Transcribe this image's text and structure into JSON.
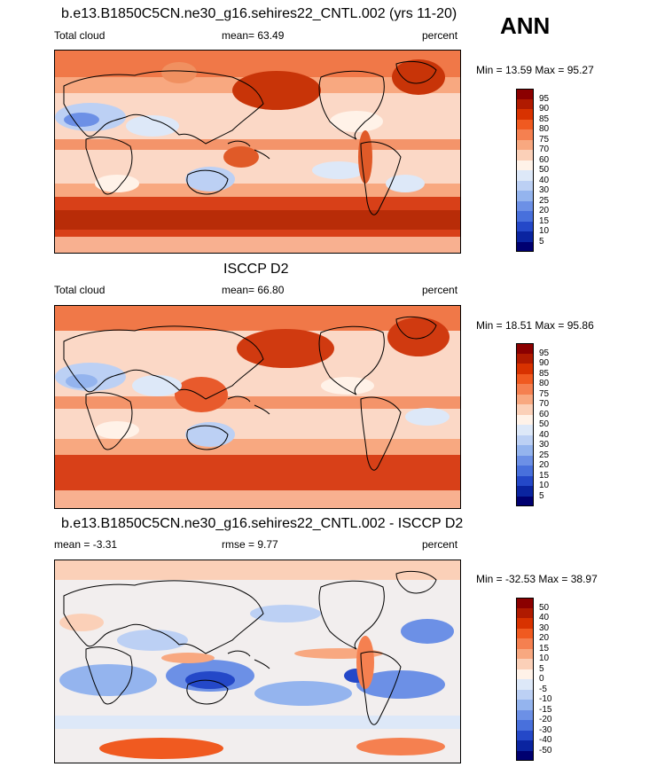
{
  "season": "ANN",
  "panels": [
    {
      "title": "b.e13.B1850C5CN.ne30_g16.sehires22_CNTL.002 (yrs 11-20)",
      "left_label": "Total cloud",
      "center_label": "mean=  63.49",
      "units": "percent",
      "minmax": "Min =  13.59 Max =  95.27",
      "scheme": "cloud"
    },
    {
      "title": "ISCCP D2",
      "left_label": "Total cloud",
      "center_label": "mean=  66.80",
      "units": "percent",
      "minmax": "Min =  18.51 Max =  95.86",
      "scheme": "cloud"
    },
    {
      "title": "b.e13.B1850C5CN.ne30_g16.sehires22_CNTL.002 - ISCCP D2",
      "left_label": "mean =  -3.31",
      "center_label": "rmse =    9.77",
      "units": "percent",
      "minmax": "Min = -32.53 Max =  38.97",
      "scheme": "diff"
    }
  ],
  "colorbars": {
    "cloud": {
      "labels": [
        "95",
        "90",
        "85",
        "80",
        "75",
        "70",
        "60",
        "50",
        "40",
        "30",
        "25",
        "20",
        "15",
        "10",
        "5"
      ],
      "colors": [
        "#8b0000",
        "#b01a00",
        "#d83200",
        "#f05a20",
        "#f58050",
        "#f8a880",
        "#fbd0b8",
        "#fff2e8",
        "#dde8f8",
        "#bcd0f4",
        "#94b4ee",
        "#6c90e6",
        "#4870dc",
        "#2448c8",
        "#0a24a0",
        "#000070"
      ]
    },
    "diff": {
      "labels": [
        "50",
        "40",
        "30",
        "20",
        "15",
        "10",
        "5",
        "0",
        "-5",
        "-10",
        "-15",
        "-20",
        "-30",
        "-40",
        "-50"
      ],
      "colors": [
        "#8b0000",
        "#b01a00",
        "#d83200",
        "#f05a20",
        "#f58050",
        "#f8a880",
        "#fbd0b8",
        "#fff2e8",
        "#dde8f8",
        "#bcd0f4",
        "#94b4ee",
        "#6c90e6",
        "#4870dc",
        "#2448c8",
        "#0a24a0",
        "#000070"
      ]
    }
  }
}
